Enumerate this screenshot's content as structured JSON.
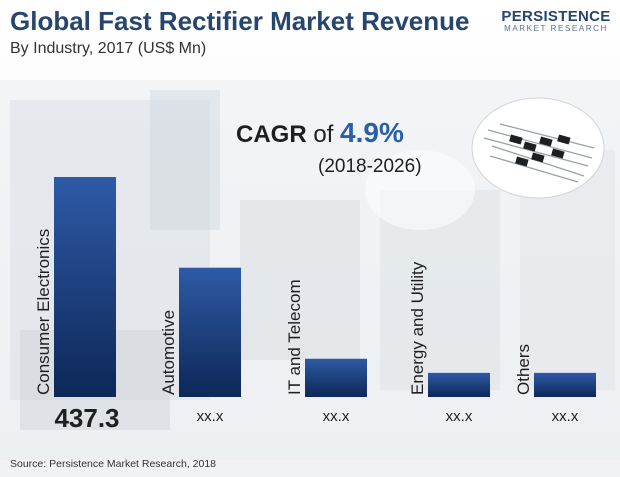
{
  "header": {
    "title": "Global Fast Rectifier Market Revenue",
    "subtitle": "By Industry, 2017 (US$ Mn)"
  },
  "logo": {
    "main": "PERSISTENCE",
    "sub": "MARKET RESEARCH"
  },
  "cagr": {
    "label": "CAGR",
    "of": "of",
    "value": "4.9%",
    "period": "(2018-2026)"
  },
  "source": "Source: Persistence Market Research, 2018",
  "colors": {
    "bar_top": "#2e5aa6",
    "bar_bottom": "#0d2757",
    "title": "#27466e",
    "accent": "#2a5fa8"
  },
  "chart_data": {
    "type": "bar",
    "title": "Global Fast Rectifier Market Revenue",
    "subtitle": "By Industry, 2017 (US$ Mn)",
    "categories": [
      "Consumer Electronics",
      "Automotive",
      "IT and Telecom",
      "Energy and Utility",
      "Others"
    ],
    "values": [
      437.3,
      257.0,
      76.0,
      48.0,
      48.0
    ],
    "value_labels": [
      "437.3",
      "xx.x",
      "xx.x",
      "xx.x",
      "xx.x"
    ],
    "ylim": [
      0,
      480
    ],
    "grid": false,
    "xlabel": "",
    "ylabel": ""
  }
}
